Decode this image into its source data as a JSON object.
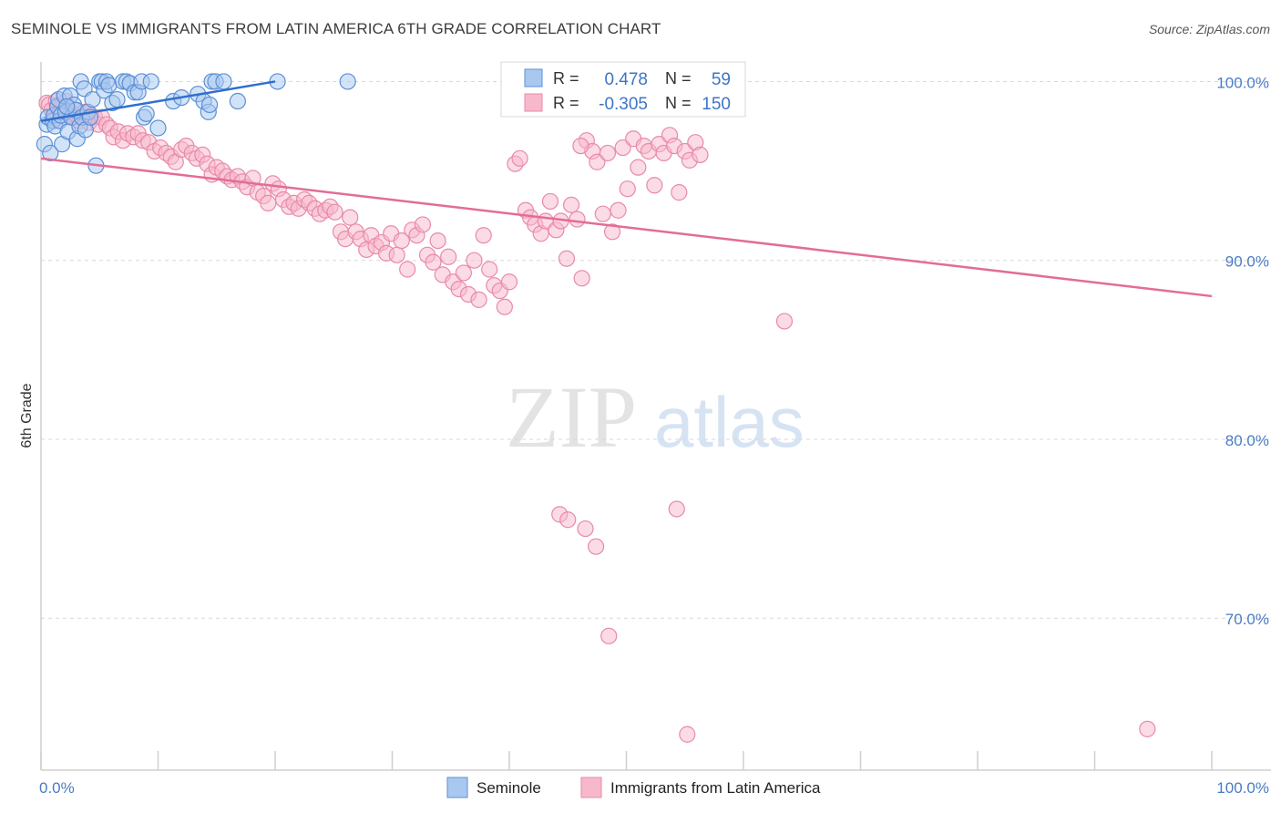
{
  "title": "SEMINOLE VS IMMIGRANTS FROM LATIN AMERICA 6TH GRADE CORRELATION CHART",
  "source": "Source: ZipAtlas.com",
  "watermark": {
    "zip": "ZIP",
    "atlas": "atlas"
  },
  "colors": {
    "seminole_fill": "#a8c8f0",
    "seminole_stroke": "#5b8fd6",
    "seminole_line": "#2f6fce",
    "latin_fill": "#f7b8cb",
    "latin_stroke": "#e88aa8",
    "latin_line": "#e36c98",
    "tick_label": "#4a7cc4",
    "grid": "#d8d8d8"
  },
  "chart_data": {
    "type": "scatter",
    "title": "SEMINOLE VS IMMIGRANTS FROM LATIN AMERICA 6TH GRADE CORRELATION CHART",
    "xlabel": "",
    "ylabel": "6th Grade",
    "xlim": [
      0,
      100
    ],
    "ylim": [
      61.5,
      101.5
    ],
    "x_tick_labels": [
      "0.0%",
      "100.0%"
    ],
    "y_ticks": [
      {
        "value": 100,
        "label": "100.0%"
      },
      {
        "value": 90,
        "label": "90.0%"
      },
      {
        "value": 80,
        "label": "80.0%"
      },
      {
        "value": 70,
        "label": "70.0%"
      }
    ],
    "grid": true,
    "legend_position": "top-center",
    "stats": [
      {
        "r_label": "R =",
        "r": "0.478",
        "n_label": "N =",
        "n": "59"
      },
      {
        "r_label": "R =",
        "r": "-0.305",
        "n_label": "N =",
        "n": "150"
      }
    ],
    "series": [
      {
        "name": "Seminole",
        "trend": [
          [
            0,
            97.8
          ],
          [
            20,
            100.0
          ]
        ],
        "points": [
          [
            0.3,
            96.5
          ],
          [
            0.5,
            97.6
          ],
          [
            0.6,
            98.0
          ],
          [
            0.8,
            96.0
          ],
          [
            1.0,
            97.8
          ],
          [
            1.1,
            98.1
          ],
          [
            1.2,
            97.5
          ],
          [
            1.4,
            98.6
          ],
          [
            1.5,
            99.0
          ],
          [
            1.6,
            97.8
          ],
          [
            1.7,
            98.1
          ],
          [
            1.8,
            96.5
          ],
          [
            2.0,
            99.2
          ],
          [
            2.1,
            98.3
          ],
          [
            2.3,
            97.2
          ],
          [
            2.5,
            99.2
          ],
          [
            2.6,
            98.0
          ],
          [
            2.8,
            98.7
          ],
          [
            3.0,
            98.4
          ],
          [
            3.1,
            96.8
          ],
          [
            3.3,
            97.5
          ],
          [
            3.4,
            100.0
          ],
          [
            3.5,
            98.0
          ],
          [
            3.7,
            99.6
          ],
          [
            3.8,
            97.3
          ],
          [
            4.0,
            98.3
          ],
          [
            4.2,
            98.0
          ],
          [
            4.4,
            99.0
          ],
          [
            4.7,
            95.3
          ],
          [
            5.0,
            100.0
          ],
          [
            5.2,
            100.0
          ],
          [
            5.4,
            99.5
          ],
          [
            5.6,
            100.0
          ],
          [
            5.8,
            99.8
          ],
          [
            6.1,
            98.8
          ],
          [
            6.5,
            99.0
          ],
          [
            7.0,
            100.0
          ],
          [
            7.3,
            100.0
          ],
          [
            7.6,
            99.9
          ],
          [
            8.0,
            99.4
          ],
          [
            8.3,
            99.4
          ],
          [
            8.6,
            100.0
          ],
          [
            8.8,
            98.0
          ],
          [
            9.0,
            98.2
          ],
          [
            9.4,
            100.0
          ],
          [
            10.0,
            97.4
          ],
          [
            11.3,
            98.9
          ],
          [
            12.0,
            99.1
          ],
          [
            13.4,
            99.3
          ],
          [
            13.9,
            98.9
          ],
          [
            14.3,
            98.3
          ],
          [
            14.4,
            98.7
          ],
          [
            14.6,
            100.0
          ],
          [
            14.9,
            100.0
          ],
          [
            15.6,
            100.0
          ],
          [
            16.8,
            98.9
          ],
          [
            20.2,
            100.0
          ],
          [
            26.2,
            100.0
          ],
          [
            2.2,
            98.6
          ]
        ]
      },
      {
        "name": "Immigrants from Latin America",
        "trend": [
          [
            0,
            95.7
          ],
          [
            100,
            88.0
          ]
        ],
        "points": [
          [
            0.5,
            98.8
          ],
          [
            0.7,
            98.7
          ],
          [
            0.9,
            98.4
          ],
          [
            1.1,
            97.8
          ],
          [
            1.3,
            98.9
          ],
          [
            1.5,
            98.7
          ],
          [
            1.7,
            98.6
          ],
          [
            1.9,
            98.2
          ],
          [
            2.1,
            98.9
          ],
          [
            2.3,
            98.5
          ],
          [
            2.5,
            98.1
          ],
          [
            2.7,
            98.0
          ],
          [
            2.9,
            98.4
          ],
          [
            3.1,
            98.0
          ],
          [
            3.3,
            97.8
          ],
          [
            3.5,
            98.2
          ],
          [
            3.7,
            98.3
          ],
          [
            3.9,
            98.0
          ],
          [
            4.1,
            97.7
          ],
          [
            4.3,
            98.1
          ],
          [
            4.6,
            98.0
          ],
          [
            4.9,
            97.6
          ],
          [
            5.2,
            98.0
          ],
          [
            5.6,
            97.6
          ],
          [
            5.9,
            97.4
          ],
          [
            6.2,
            96.9
          ],
          [
            6.6,
            97.2
          ],
          [
            7.0,
            96.7
          ],
          [
            7.4,
            97.1
          ],
          [
            7.9,
            96.9
          ],
          [
            8.3,
            97.1
          ],
          [
            8.7,
            96.7
          ],
          [
            9.2,
            96.6
          ],
          [
            9.7,
            96.1
          ],
          [
            10.2,
            96.3
          ],
          [
            10.7,
            96.0
          ],
          [
            11.1,
            95.8
          ],
          [
            11.5,
            95.5
          ],
          [
            12.0,
            96.2
          ],
          [
            12.4,
            96.4
          ],
          [
            12.9,
            96.0
          ],
          [
            13.3,
            95.7
          ],
          [
            13.8,
            95.9
          ],
          [
            14.2,
            95.4
          ],
          [
            14.6,
            94.8
          ],
          [
            15.0,
            95.2
          ],
          [
            15.5,
            95.0
          ],
          [
            15.9,
            94.7
          ],
          [
            16.3,
            94.5
          ],
          [
            16.8,
            94.7
          ],
          [
            17.2,
            94.4
          ],
          [
            17.6,
            94.1
          ],
          [
            18.1,
            94.6
          ],
          [
            18.5,
            93.8
          ],
          [
            19.0,
            93.6
          ],
          [
            19.4,
            93.2
          ],
          [
            19.8,
            94.3
          ],
          [
            20.3,
            94.0
          ],
          [
            20.7,
            93.4
          ],
          [
            21.2,
            93.0
          ],
          [
            21.6,
            93.2
          ],
          [
            22.0,
            92.9
          ],
          [
            22.5,
            93.4
          ],
          [
            22.9,
            93.2
          ],
          [
            23.4,
            92.9
          ],
          [
            23.8,
            92.6
          ],
          [
            24.3,
            92.8
          ],
          [
            24.7,
            93.0
          ],
          [
            25.1,
            92.7
          ],
          [
            25.6,
            91.6
          ],
          [
            26.0,
            91.2
          ],
          [
            26.4,
            92.4
          ],
          [
            26.9,
            91.6
          ],
          [
            27.3,
            91.2
          ],
          [
            27.8,
            90.6
          ],
          [
            28.2,
            91.4
          ],
          [
            28.6,
            90.8
          ],
          [
            29.1,
            91.0
          ],
          [
            29.5,
            90.4
          ],
          [
            29.9,
            91.5
          ],
          [
            30.4,
            90.3
          ],
          [
            30.8,
            91.1
          ],
          [
            31.3,
            89.5
          ],
          [
            31.7,
            91.7
          ],
          [
            32.1,
            91.4
          ],
          [
            32.6,
            92.0
          ],
          [
            33.0,
            90.3
          ],
          [
            33.5,
            89.9
          ],
          [
            33.9,
            91.1
          ],
          [
            34.3,
            89.2
          ],
          [
            34.8,
            90.2
          ],
          [
            35.2,
            88.8
          ],
          [
            35.7,
            88.4
          ],
          [
            36.1,
            89.3
          ],
          [
            36.5,
            88.1
          ],
          [
            37.0,
            90.0
          ],
          [
            37.4,
            87.8
          ],
          [
            37.8,
            91.4
          ],
          [
            38.3,
            89.5
          ],
          [
            38.7,
            88.6
          ],
          [
            39.2,
            88.3
          ],
          [
            39.6,
            87.4
          ],
          [
            40.0,
            88.8
          ],
          [
            40.5,
            95.4
          ],
          [
            40.9,
            95.7
          ],
          [
            41.4,
            92.8
          ],
          [
            41.8,
            92.4
          ],
          [
            42.2,
            92.0
          ],
          [
            42.7,
            91.5
          ],
          [
            43.1,
            92.2
          ],
          [
            43.5,
            93.3
          ],
          [
            44.0,
            91.7
          ],
          [
            44.4,
            92.2
          ],
          [
            44.9,
            90.1
          ],
          [
            45.3,
            93.1
          ],
          [
            45.8,
            92.3
          ],
          [
            46.2,
            89.0
          ],
          [
            46.6,
            96.7
          ],
          [
            47.1,
            96.1
          ],
          [
            47.5,
            95.5
          ],
          [
            48.0,
            92.6
          ],
          [
            48.4,
            96.0
          ],
          [
            48.8,
            91.6
          ],
          [
            49.3,
            92.8
          ],
          [
            49.7,
            96.3
          ],
          [
            50.1,
            94.0
          ],
          [
            50.6,
            96.8
          ],
          [
            51.0,
            95.2
          ],
          [
            51.5,
            96.4
          ],
          [
            51.9,
            96.1
          ],
          [
            52.4,
            94.2
          ],
          [
            52.8,
            96.5
          ],
          [
            53.2,
            96.0
          ],
          [
            53.7,
            97.0
          ],
          [
            54.1,
            96.4
          ],
          [
            54.5,
            93.8
          ],
          [
            55.0,
            96.1
          ],
          [
            55.4,
            95.6
          ],
          [
            55.9,
            96.6
          ],
          [
            56.3,
            95.9
          ],
          [
            46.1,
            96.4
          ],
          [
            44.3,
            75.8
          ],
          [
            45.0,
            75.5
          ],
          [
            46.5,
            75.0
          ],
          [
            47.4,
            74.0
          ],
          [
            48.5,
            69.0
          ],
          [
            54.3,
            76.1
          ],
          [
            55.2,
            63.5
          ],
          [
            63.5,
            86.6
          ],
          [
            94.5,
            63.8
          ]
        ]
      }
    ]
  },
  "legend": {
    "series": [
      "Seminole",
      "Immigrants from Latin America"
    ]
  }
}
